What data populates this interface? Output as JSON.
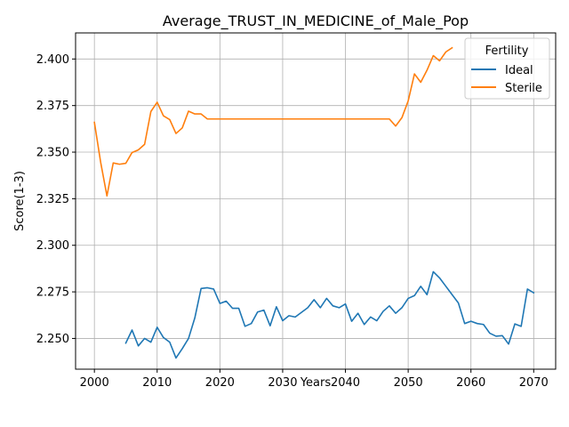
{
  "chart_data": {
    "type": "line",
    "title": "Average_TRUST_IN_MEDICINE_of_Male_Pop",
    "xlabel": "Years",
    "ylabel": "Score(1-3)",
    "xlim": [
      1997,
      2073.5
    ],
    "ylim": [
      2.2335,
      2.414
    ],
    "x_ticks": [
      2000,
      2010,
      2020,
      2030,
      2040,
      2050,
      2060,
      2070
    ],
    "y_ticks": [
      2.25,
      2.275,
      2.3,
      2.325,
      2.35,
      2.375,
      2.4
    ],
    "grid": true,
    "legend": {
      "title": "Fertility",
      "placement": "top-right"
    },
    "series": [
      {
        "name": "Ideal",
        "color": "#1f77b4",
        "x": [
          2005,
          2006,
          2007,
          2008,
          2009,
          2010,
          2011,
          2012,
          2013,
          2014,
          2015,
          2016,
          2017,
          2018,
          2019,
          2020,
          2021,
          2022,
          2023,
          2024,
          2025,
          2026,
          2027,
          2028,
          2029,
          2030,
          2031,
          2032,
          2033,
          2034,
          2035,
          2036,
          2037,
          2038,
          2039,
          2040,
          2041,
          2042,
          2043,
          2044,
          2045,
          2046,
          2047,
          2048,
          2049,
          2050,
          2051,
          2052,
          2053,
          2054,
          2055,
          2056,
          2057,
          2058,
          2059,
          2060,
          2061,
          2062,
          2063,
          2064,
          2065,
          2066,
          2067,
          2068,
          2069,
          2070
        ],
        "y": [
          2.2475,
          2.2545,
          2.246,
          2.25,
          2.248,
          2.256,
          2.2505,
          2.248,
          2.2395,
          2.2445,
          2.25,
          2.261,
          2.2768,
          2.2772,
          2.2765,
          2.2688,
          2.27,
          2.2662,
          2.2662,
          2.2565,
          2.258,
          2.2642,
          2.2652,
          2.2568,
          2.267,
          2.2595,
          2.2622,
          2.2615,
          2.264,
          2.2665,
          2.2708,
          2.2665,
          2.2715,
          2.2675,
          2.2665,
          2.2685,
          2.2592,
          2.2635,
          2.2575,
          2.2615,
          2.2595,
          2.2645,
          2.2675,
          2.2635,
          2.2665,
          2.2715,
          2.273,
          2.278,
          2.2735,
          2.2858,
          2.2825,
          2.278,
          2.2735,
          2.269,
          2.258,
          2.2592,
          2.258,
          2.2575,
          2.2528,
          2.2512,
          2.2515,
          2.247,
          2.2578,
          2.2565,
          2.2765,
          2.2745
        ]
      },
      {
        "name": "Sterile",
        "color": "#ff7f0e",
        "x": [
          2000,
          2001,
          2002,
          2003,
          2004,
          2005,
          2006,
          2007,
          2008,
          2009,
          2010,
          2011,
          2012,
          2013,
          2014,
          2015,
          2016,
          2017,
          2018,
          2019,
          2020,
          2021,
          2022,
          2023,
          2024,
          2025,
          2026,
          2027,
          2028,
          2029,
          2030,
          2031,
          2032,
          2033,
          2034,
          2035,
          2036,
          2037,
          2038,
          2039,
          2040,
          2041,
          2042,
          2043,
          2044,
          2045,
          2046,
          2047,
          2048,
          2049,
          2050,
          2051,
          2052,
          2053,
          2054,
          2055,
          2056,
          2057
        ],
        "y": [
          2.366,
          2.3445,
          2.3265,
          2.3442,
          2.3435,
          2.344,
          2.3498,
          2.3512,
          2.3542,
          2.3718,
          2.3768,
          2.3695,
          2.3675,
          2.36,
          2.363,
          2.372,
          2.3705,
          2.3705,
          2.3678,
          2.3678,
          2.3678,
          2.3678,
          2.3678,
          2.3678,
          2.3678,
          2.3678,
          2.3678,
          2.3678,
          2.3678,
          2.3678,
          2.3678,
          2.3678,
          2.3678,
          2.3678,
          2.3678,
          2.3678,
          2.3678,
          2.3678,
          2.3678,
          2.3678,
          2.3678,
          2.3678,
          2.3678,
          2.3678,
          2.3678,
          2.3678,
          2.3678,
          2.3678,
          2.364,
          2.3685,
          2.3775,
          2.392,
          2.3875,
          2.394,
          2.4018,
          2.399,
          2.4038,
          2.406
        ]
      }
    ]
  }
}
